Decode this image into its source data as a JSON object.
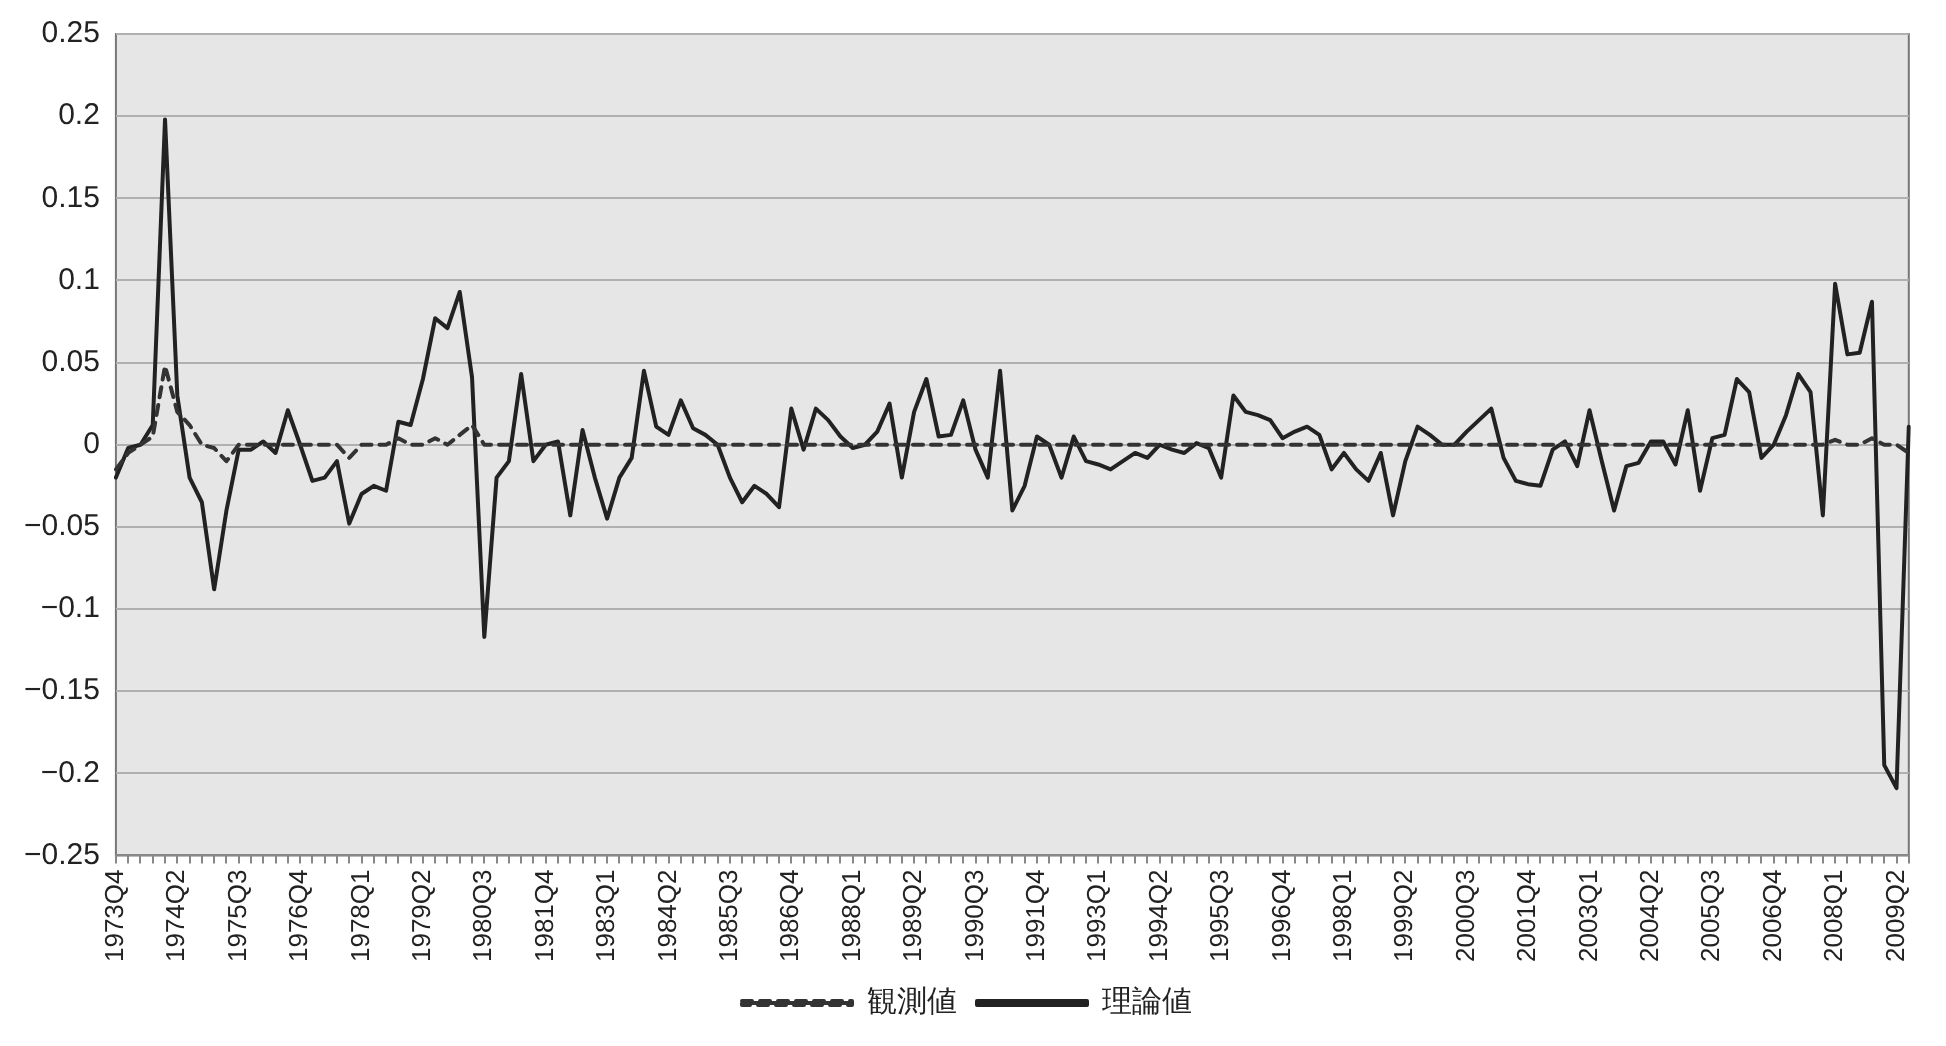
{
  "chart_data": {
    "type": "line",
    "categories": [
      "1973Q4",
      null,
      null,
      null,
      null,
      "1974Q2",
      null,
      null,
      null,
      null,
      "1975Q3",
      null,
      null,
      null,
      null,
      "1976Q4",
      null,
      null,
      null,
      null,
      "1978Q1",
      null,
      null,
      null,
      null,
      "1979Q2",
      null,
      null,
      null,
      null,
      "1980Q3",
      null,
      null,
      null,
      null,
      "1981Q4",
      null,
      null,
      null,
      null,
      "1983Q1",
      null,
      null,
      null,
      null,
      "1984Q2",
      null,
      null,
      null,
      null,
      "1985Q3",
      null,
      null,
      null,
      null,
      "1986Q4",
      null,
      null,
      null,
      null,
      "1988Q1",
      null,
      null,
      null,
      null,
      "1989Q2",
      null,
      null,
      null,
      null,
      "1990Q3",
      null,
      null,
      null,
      null,
      "1991Q4",
      null,
      null,
      null,
      null,
      "1993Q1",
      null,
      null,
      null,
      null,
      "1994Q2",
      null,
      null,
      null,
      null,
      "1995Q3",
      null,
      null,
      null,
      null,
      "1996Q4",
      null,
      null,
      null,
      null,
      "1998Q1",
      null,
      null,
      null,
      null,
      "1999Q2",
      null,
      null,
      null,
      null,
      "2000Q3",
      null,
      null,
      null,
      null,
      "2001Q4",
      null,
      null,
      null,
      null,
      "2003Q1",
      null,
      null,
      null,
      null,
      "2004Q2",
      null,
      null,
      null,
      null,
      "2005Q3",
      null,
      null,
      null,
      null,
      "2006Q4",
      null,
      null,
      null,
      null,
      "2008Q1",
      null,
      null,
      null,
      null,
      "2009Q2",
      null
    ],
    "series": [
      {
        "name": "観測値",
        "color": "#333333",
        "line_style": "dashed",
        "values": [
          -0.015,
          -0.005,
          0,
          0.005,
          0.048,
          0.02,
          0.012,
          0,
          -0.002,
          -0.01,
          0,
          0,
          0,
          0,
          0,
          0,
          0,
          0,
          0,
          -0.008,
          0,
          0,
          0,
          0.004,
          0,
          0,
          0.004,
          0,
          0.006,
          0.012,
          0,
          0,
          0,
          0,
          0,
          0,
          0,
          0,
          0,
          0,
          0,
          0,
          0,
          0,
          0,
          0,
          0,
          0,
          0,
          0,
          0,
          0,
          0,
          0,
          0,
          0,
          0,
          0,
          0,
          0,
          0,
          0,
          0,
          0,
          0,
          0,
          0,
          0,
          0,
          0,
          0,
          0,
          0,
          0,
          0,
          0,
          0,
          0,
          0,
          0,
          0,
          0,
          0,
          0,
          0,
          0,
          0,
          0,
          0,
          0,
          0,
          0,
          0,
          0,
          0,
          0,
          0,
          0,
          0,
          0,
          0,
          0,
          0,
          0,
          0,
          0,
          0,
          0,
          0,
          0,
          0,
          0,
          0,
          0,
          0,
          0,
          0,
          0,
          0,
          0,
          0,
          0,
          0,
          0,
          0,
          0,
          0,
          0,
          0,
          0,
          0,
          0,
          0,
          0,
          0,
          0,
          0,
          0,
          0,
          0,
          0.003,
          0,
          0,
          0.004,
          0,
          0,
          -0.005
        ]
      },
      {
        "name": "理論値",
        "color": "#222222",
        "line_style": "solid",
        "values": [
          -0.02,
          -0.002,
          0.0,
          0.012,
          0.198,
          0.03,
          -0.02,
          -0.035,
          -0.088,
          -0.04,
          -0.003,
          -0.003,
          0.002,
          -0.005,
          0.021,
          0.0,
          -0.022,
          -0.02,
          -0.01,
          -0.048,
          -0.03,
          -0.025,
          -0.028,
          0.014,
          0.012,
          0.04,
          0.077,
          0.071,
          0.093,
          0.041,
          -0.117,
          -0.02,
          -0.01,
          0.043,
          -0.01,
          0.0,
          0.002,
          -0.043,
          0.009,
          -0.02,
          -0.045,
          -0.02,
          -0.008,
          0.045,
          0.011,
          0.006,
          0.027,
          0.01,
          0.006,
          0.0,
          -0.02,
          -0.035,
          -0.025,
          -0.03,
          -0.038,
          0.022,
          -0.003,
          0.022,
          0.015,
          0.005,
          -0.002,
          0.0,
          0.008,
          0.025,
          -0.02,
          0.02,
          0.04,
          0.005,
          0.006,
          0.027,
          -0.003,
          -0.02,
          0.045,
          -0.04,
          -0.025,
          0.005,
          0.0,
          -0.02,
          0.005,
          -0.01,
          -0.012,
          -0.015,
          -0.01,
          -0.005,
          -0.008,
          0.0,
          -0.003,
          -0.005,
          0.001,
          -0.002,
          -0.02,
          0.03,
          0.02,
          0.018,
          0.015,
          0.004,
          0.008,
          0.011,
          0.006,
          -0.015,
          -0.005,
          -0.015,
          -0.022,
          -0.005,
          -0.043,
          -0.01,
          0.011,
          0.006,
          0.0,
          0.0,
          0.008,
          0.015,
          0.022,
          -0.008,
          -0.022,
          -0.024,
          -0.025,
          -0.003,
          0.002,
          -0.013,
          0.021,
          -0.01,
          -0.04,
          -0.013,
          -0.011,
          0.002,
          0.002,
          -0.012,
          0.021,
          -0.028,
          0.004,
          0.006,
          0.04,
          0.032,
          -0.008,
          0.0,
          0.018,
          0.043,
          0.032,
          -0.043,
          0.098,
          0.055,
          0.056,
          0.087,
          -0.195,
          -0.209,
          0.011
        ]
      }
    ],
    "ylim": [
      -0.25,
      0.25
    ],
    "yticks": [
      -0.25,
      -0.2,
      -0.15,
      -0.1,
      -0.05,
      0,
      0.05,
      0.1,
      0.15,
      0.2,
      0.25
    ],
    "grid": "y",
    "legend": "bottom",
    "marker": "none"
  }
}
